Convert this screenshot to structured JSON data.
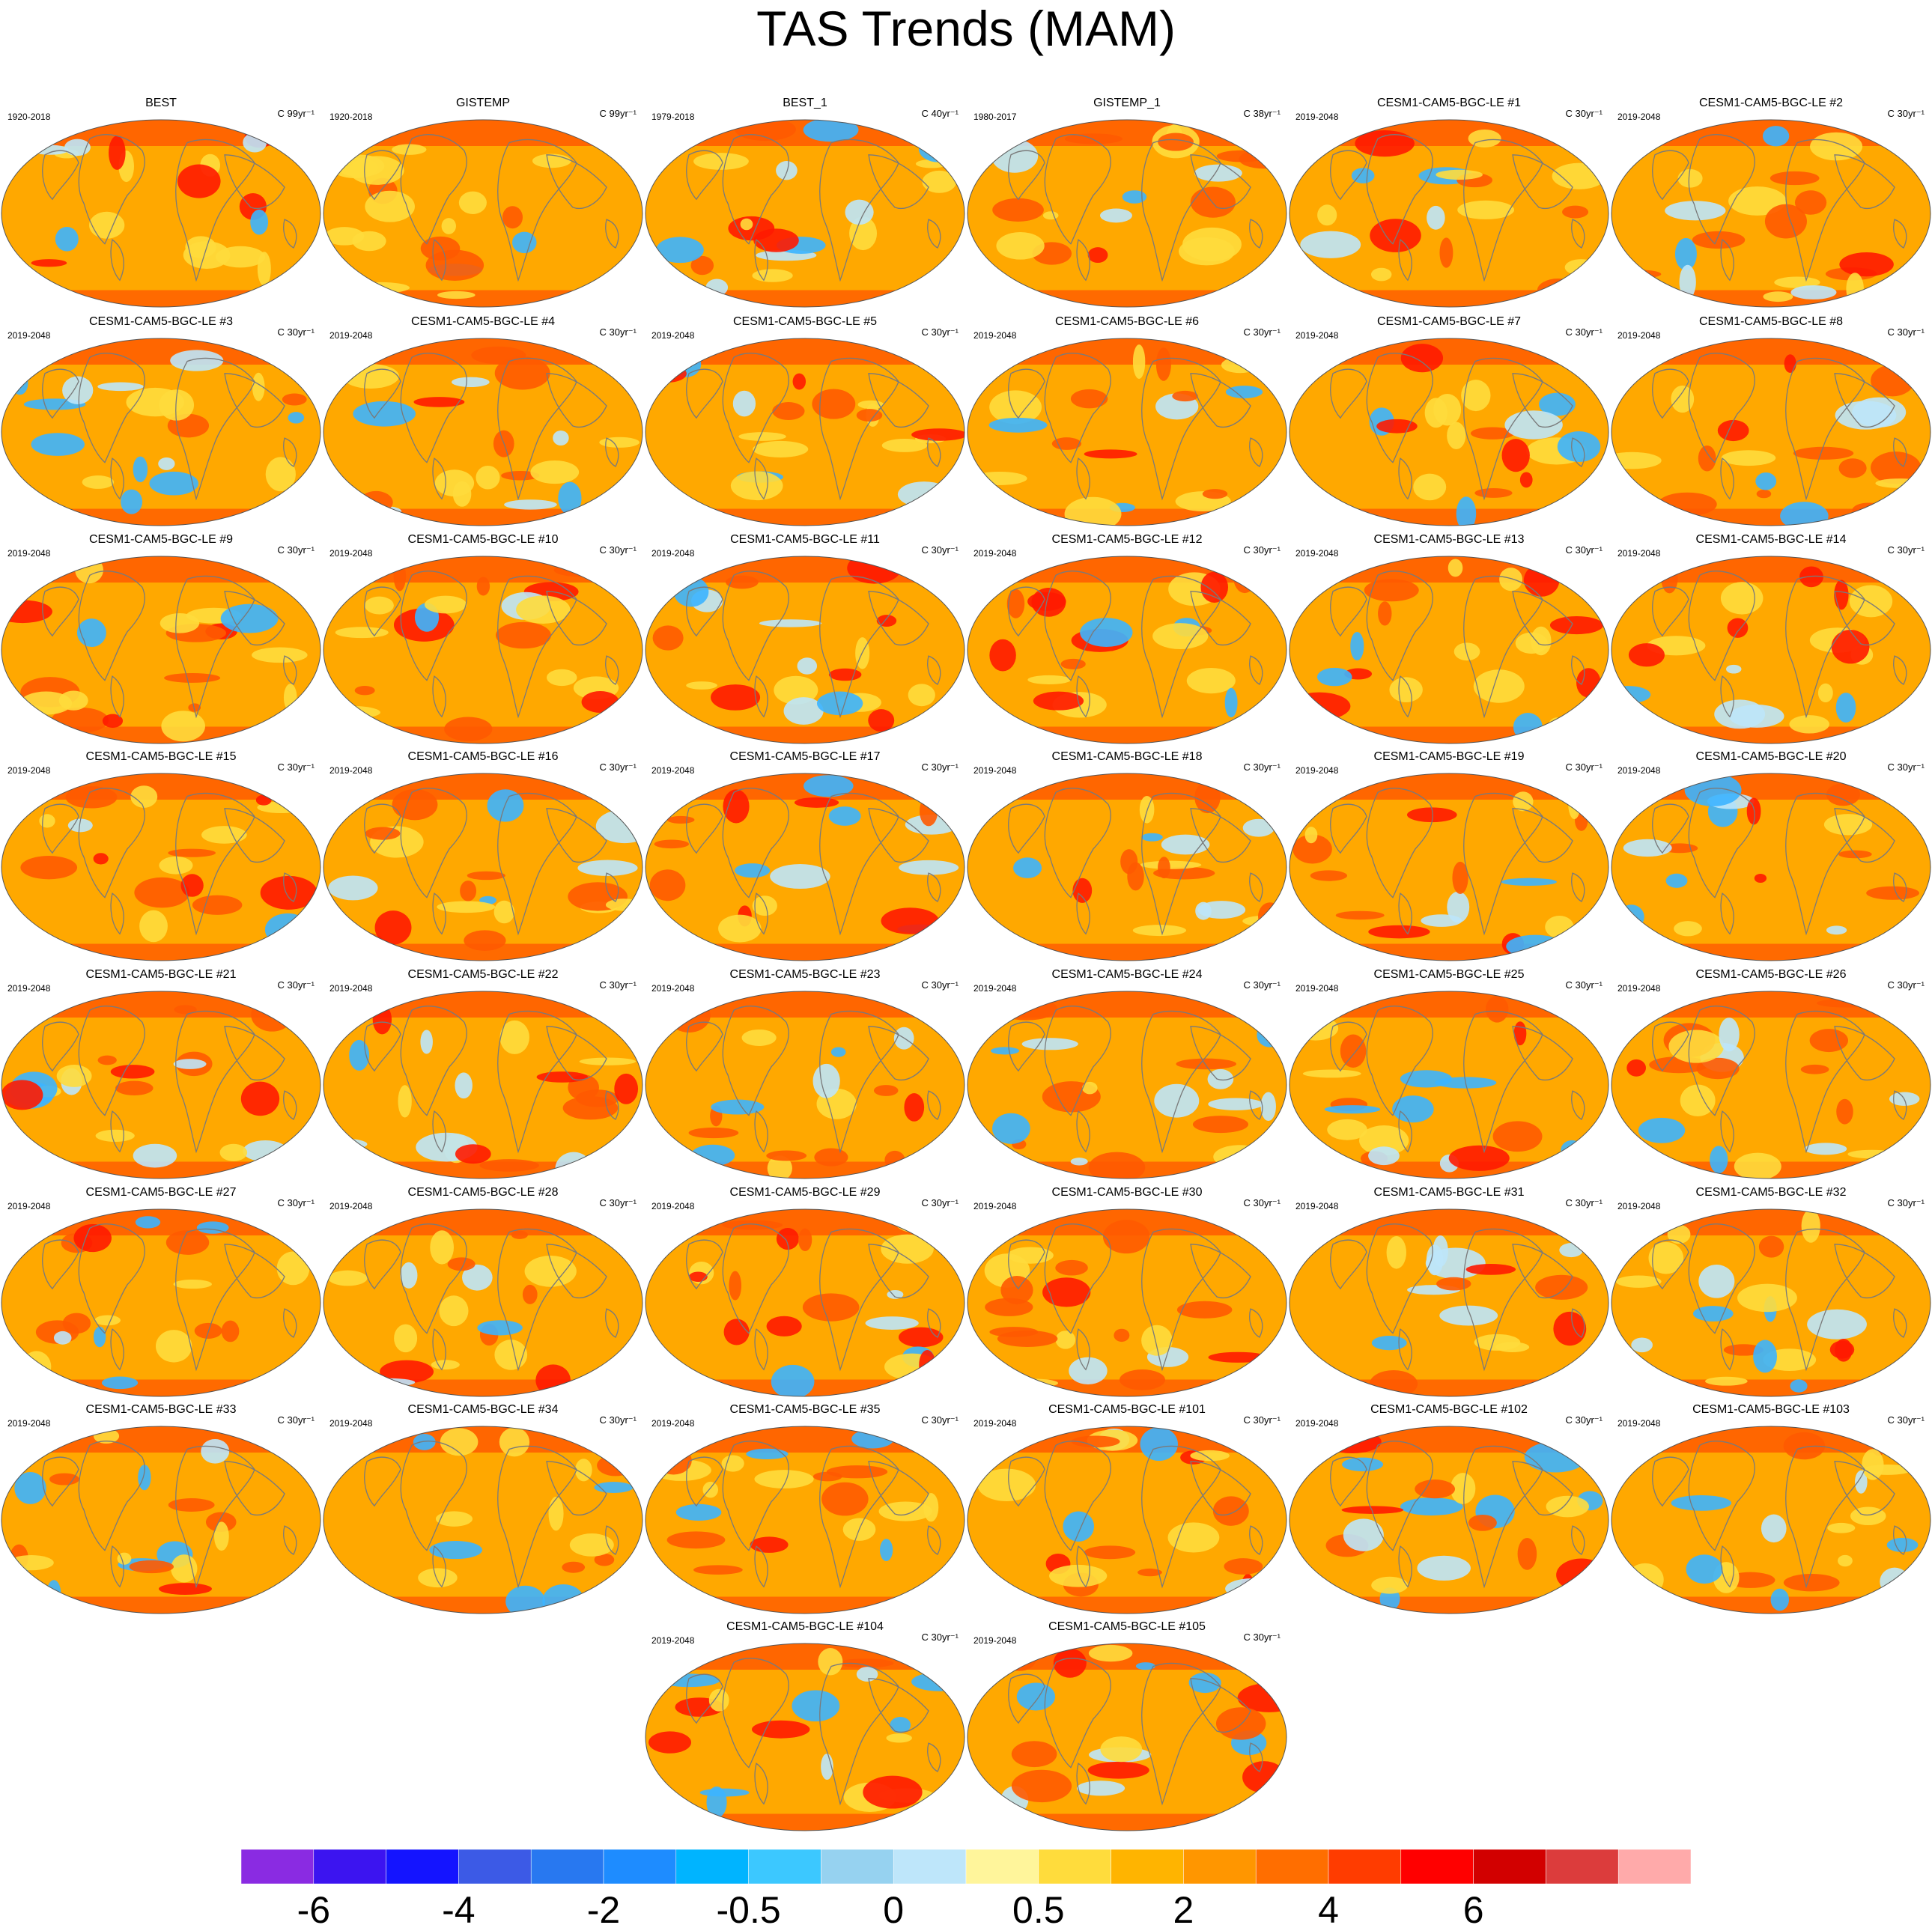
{
  "figure": {
    "title": "TAS Trends (MAM)"
  },
  "panels": [
    {
      "title": "BEST",
      "period": "1920-2018",
      "units": "C 99yr⁻¹"
    },
    {
      "title": "GISTEMP",
      "period": "1920-2018",
      "units": "C 99yr⁻¹"
    },
    {
      "title": "BEST_1",
      "period": "1979-2018",
      "units": "C 40yr⁻¹"
    },
    {
      "title": "GISTEMP_1",
      "period": "1980-2017",
      "units": "C 38yr⁻¹"
    },
    {
      "title": "CESM1-CAM5-BGC-LE #1",
      "period": "2019-2048",
      "units": "C 30yr⁻¹"
    },
    {
      "title": "CESM1-CAM5-BGC-LE #2",
      "period": "2019-2048",
      "units": "C 30yr⁻¹"
    },
    {
      "title": "CESM1-CAM5-BGC-LE #3",
      "period": "2019-2048",
      "units": "C 30yr⁻¹"
    },
    {
      "title": "CESM1-CAM5-BGC-LE #4",
      "period": "2019-2048",
      "units": "C 30yr⁻¹"
    },
    {
      "title": "CESM1-CAM5-BGC-LE #5",
      "period": "2019-2048",
      "units": "C 30yr⁻¹"
    },
    {
      "title": "CESM1-CAM5-BGC-LE #6",
      "period": "2019-2048",
      "units": "C 30yr⁻¹"
    },
    {
      "title": "CESM1-CAM5-BGC-LE #7",
      "period": "2019-2048",
      "units": "C 30yr⁻¹"
    },
    {
      "title": "CESM1-CAM5-BGC-LE #8",
      "period": "2019-2048",
      "units": "C 30yr⁻¹"
    },
    {
      "title": "CESM1-CAM5-BGC-LE #9",
      "period": "2019-2048",
      "units": "C 30yr⁻¹"
    },
    {
      "title": "CESM1-CAM5-BGC-LE #10",
      "period": "2019-2048",
      "units": "C 30yr⁻¹"
    },
    {
      "title": "CESM1-CAM5-BGC-LE #11",
      "period": "2019-2048",
      "units": "C 30yr⁻¹"
    },
    {
      "title": "CESM1-CAM5-BGC-LE #12",
      "period": "2019-2048",
      "units": "C 30yr⁻¹"
    },
    {
      "title": "CESM1-CAM5-BGC-LE #13",
      "period": "2019-2048",
      "units": "C 30yr⁻¹"
    },
    {
      "title": "CESM1-CAM5-BGC-LE #14",
      "period": "2019-2048",
      "units": "C 30yr⁻¹"
    },
    {
      "title": "CESM1-CAM5-BGC-LE #15",
      "period": "2019-2048",
      "units": "C 30yr⁻¹"
    },
    {
      "title": "CESM1-CAM5-BGC-LE #16",
      "period": "2019-2048",
      "units": "C 30yr⁻¹"
    },
    {
      "title": "CESM1-CAM5-BGC-LE #17",
      "period": "2019-2048",
      "units": "C 30yr⁻¹"
    },
    {
      "title": "CESM1-CAM5-BGC-LE #18",
      "period": "2019-2048",
      "units": "C 30yr⁻¹"
    },
    {
      "title": "CESM1-CAM5-BGC-LE #19",
      "period": "2019-2048",
      "units": "C 30yr⁻¹"
    },
    {
      "title": "CESM1-CAM5-BGC-LE #20",
      "period": "2019-2048",
      "units": "C 30yr⁻¹"
    },
    {
      "title": "CESM1-CAM5-BGC-LE #21",
      "period": "2019-2048",
      "units": "C 30yr⁻¹"
    },
    {
      "title": "CESM1-CAM5-BGC-LE #22",
      "period": "2019-2048",
      "units": "C 30yr⁻¹"
    },
    {
      "title": "CESM1-CAM5-BGC-LE #23",
      "period": "2019-2048",
      "units": "C 30yr⁻¹"
    },
    {
      "title": "CESM1-CAM5-BGC-LE #24",
      "period": "2019-2048",
      "units": "C 30yr⁻¹"
    },
    {
      "title": "CESM1-CAM5-BGC-LE #25",
      "period": "2019-2048",
      "units": "C 30yr⁻¹"
    },
    {
      "title": "CESM1-CAM5-BGC-LE #26",
      "period": "2019-2048",
      "units": "C 30yr⁻¹"
    },
    {
      "title": "CESM1-CAM5-BGC-LE #27",
      "period": "2019-2048",
      "units": "C 30yr⁻¹"
    },
    {
      "title": "CESM1-CAM5-BGC-LE #28",
      "period": "2019-2048",
      "units": "C 30yr⁻¹"
    },
    {
      "title": "CESM1-CAM5-BGC-LE #29",
      "period": "2019-2048",
      "units": "C 30yr⁻¹"
    },
    {
      "title": "CESM1-CAM5-BGC-LE #30",
      "period": "2019-2048",
      "units": "C 30yr⁻¹"
    },
    {
      "title": "CESM1-CAM5-BGC-LE #31",
      "period": "2019-2048",
      "units": "C 30yr⁻¹"
    },
    {
      "title": "CESM1-CAM5-BGC-LE #32",
      "period": "2019-2048",
      "units": "C 30yr⁻¹"
    },
    {
      "title": "CESM1-CAM5-BGC-LE #33",
      "period": "2019-2048",
      "units": "C 30yr⁻¹"
    },
    {
      "title": "CESM1-CAM5-BGC-LE #34",
      "period": "2019-2048",
      "units": "C 30yr⁻¹"
    },
    {
      "title": "CESM1-CAM5-BGC-LE #35",
      "period": "2019-2048",
      "units": "C 30yr⁻¹"
    },
    {
      "title": "CESM1-CAM5-BGC-LE #101",
      "period": "2019-2048",
      "units": "C 30yr⁻¹"
    },
    {
      "title": "CESM1-CAM5-BGC-LE #102",
      "period": "2019-2048",
      "units": "C 30yr⁻¹"
    },
    {
      "title": "CESM1-CAM5-BGC-LE #103",
      "period": "2019-2048",
      "units": "C 30yr⁻¹"
    },
    {
      "title": "CESM1-CAM5-BGC-LE #104",
      "period": "2019-2048",
      "units": "C 30yr⁻¹"
    },
    {
      "title": "CESM1-CAM5-BGC-LE #105",
      "period": "2019-2048",
      "units": "C 30yr⁻¹"
    }
  ],
  "colorbar": {
    "colors": [
      "#8a2be2",
      "#3c14f0",
      "#1414ff",
      "#3c5ae6",
      "#2878f0",
      "#1e8cff",
      "#00b4ff",
      "#3cc8ff",
      "#96d2f0",
      "#bee6fa",
      "#fff59b",
      "#ffdc3c",
      "#ffb400",
      "#ff9600",
      "#ff6e00",
      "#ff3c00",
      "#ff0000",
      "#d20000",
      "#dc3c3c",
      "#ffaaaa"
    ],
    "tick_labels": [
      "-6",
      "-4",
      "-2",
      "-0.5",
      "0",
      "0.5",
      "2",
      "4",
      "6"
    ]
  },
  "map_colors": {
    "ocean_base": "#ffa800",
    "warm_strong": "#ff5a00",
    "warm_extreme": "#ff1a00",
    "neutral": "#ffdc3c",
    "cool_light": "#bee6fa",
    "cool": "#3cb4ff",
    "coastline": "#7a7a7a"
  }
}
